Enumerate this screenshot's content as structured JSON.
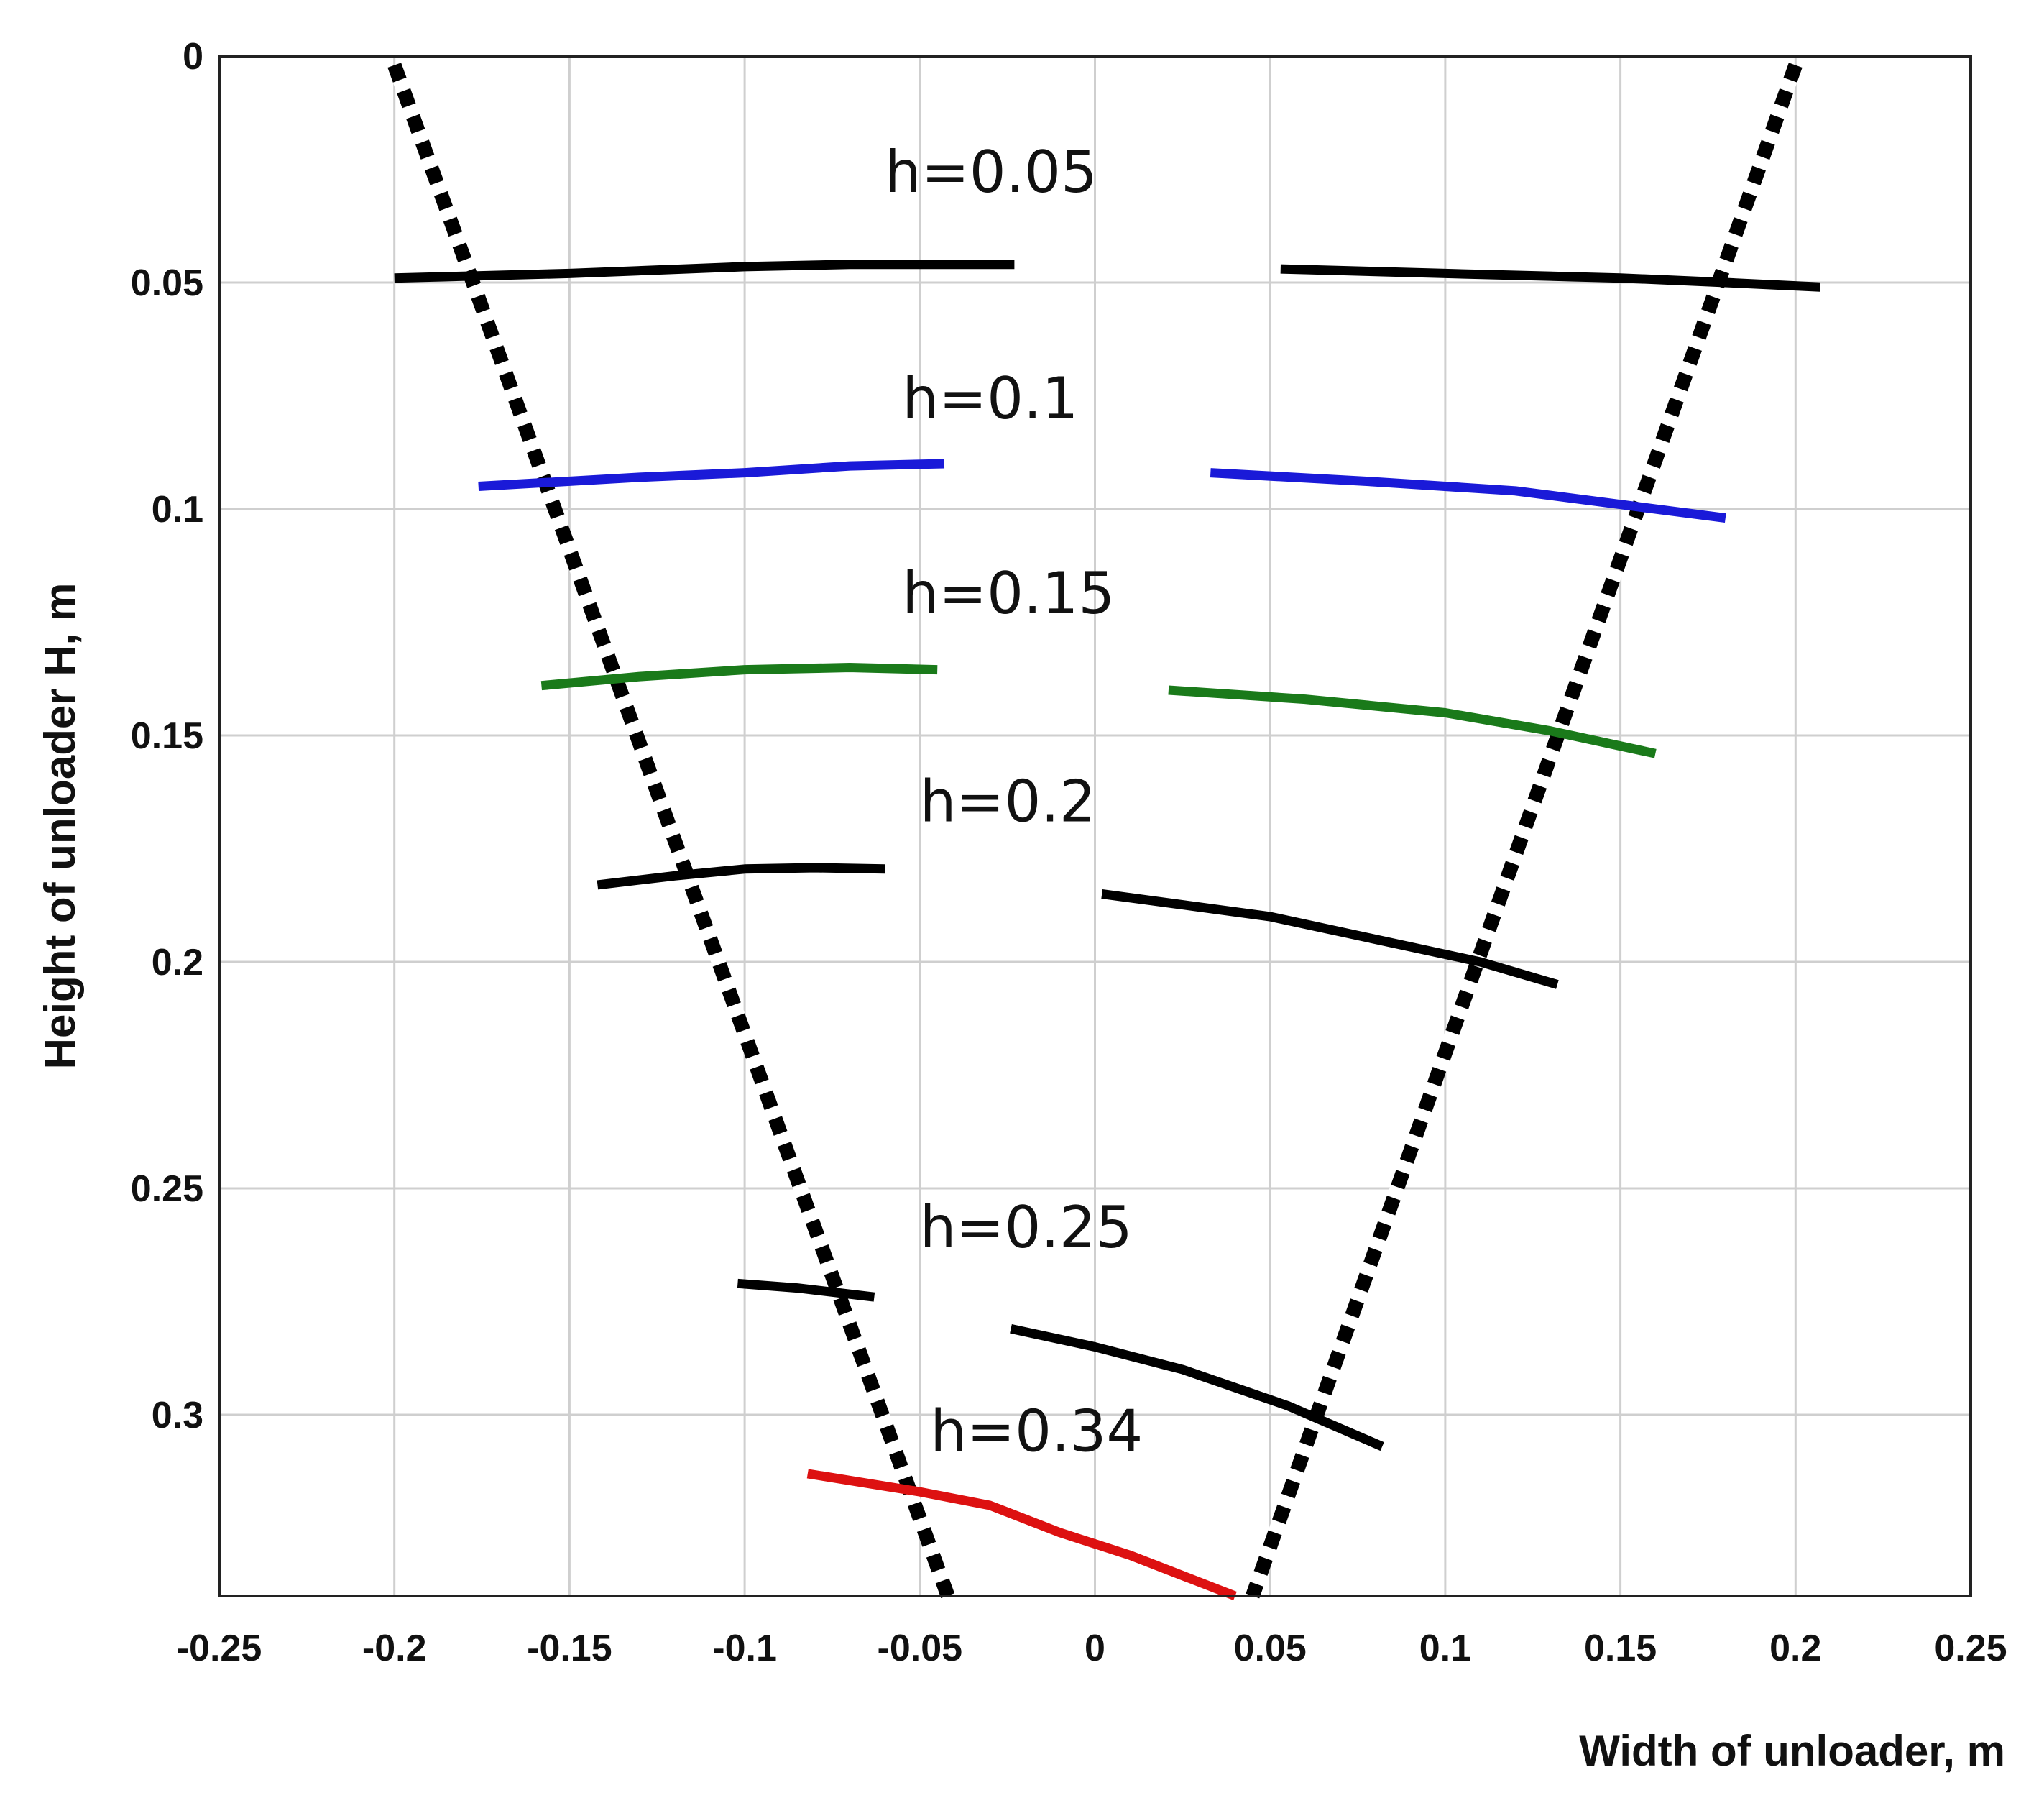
{
  "chart_data": {
    "type": "line",
    "title": "",
    "xlabel": "Width of unloader, m",
    "ylabel": "Height of unloader H, m",
    "xlim": [
      -0.25,
      0.25
    ],
    "ylim": [
      0,
      0.34
    ],
    "y_inverted": true,
    "grid": true,
    "x_ticks": [
      -0.25,
      -0.2,
      -0.15,
      -0.1,
      -0.05,
      0,
      0.05,
      0.1,
      0.15,
      0.2,
      0.25
    ],
    "x_tick_labels": [
      "-0.25",
      "-0.2",
      "-0.15",
      "-0.1",
      "-0.05",
      "0",
      "0.05",
      "0.1",
      "0.15",
      "0.2",
      "0.25"
    ],
    "y_ticks": [
      0,
      0.05,
      0.1,
      0.15,
      0.2,
      0.25,
      0.3
    ],
    "y_tick_labels": [
      "0",
      "0.05",
      "0.1",
      "0.15",
      "0.2",
      "0.25",
      "0.3"
    ],
    "boundary_lines": [
      {
        "name": "left-boundary",
        "style": "dashed",
        "color": "#000000",
        "points": [
          [
            -0.2,
            0.002
          ],
          [
            -0.042,
            0.34
          ]
        ]
      },
      {
        "name": "right-boundary",
        "style": "dashed",
        "color": "#000000",
        "points": [
          [
            0.2,
            0.002
          ],
          [
            0.045,
            0.34
          ]
        ]
      }
    ],
    "series": [
      {
        "name": "h=0.05",
        "color": "#000000",
        "label": "h=0.05",
        "label_at": [
          -0.06,
          0.03
        ],
        "segments": [
          [
            [
              -0.2,
              0.049
            ],
            [
              -0.15,
              0.048
            ],
            [
              -0.1,
              0.0465
            ],
            [
              -0.07,
              0.046
            ],
            [
              -0.023,
              0.046
            ]
          ],
          [
            [
              0.053,
              0.047
            ],
            [
              0.1,
              0.048
            ],
            [
              0.15,
              0.049
            ],
            [
              0.18,
              0.05
            ],
            [
              0.207,
              0.051
            ]
          ]
        ]
      },
      {
        "name": "h=0.1",
        "color": "#1a1ad8",
        "label": "h=0.1",
        "label_at": [
          -0.055,
          0.08
        ],
        "segments": [
          [
            [
              -0.176,
              0.095
            ],
            [
              -0.13,
              0.093
            ],
            [
              -0.1,
              0.092
            ],
            [
              -0.07,
              0.0905
            ],
            [
              -0.043,
              0.09
            ]
          ],
          [
            [
              0.033,
              0.092
            ],
            [
              0.08,
              0.094
            ],
            [
              0.12,
              0.096
            ],
            [
              0.15,
              0.099
            ],
            [
              0.18,
              0.102
            ]
          ]
        ]
      },
      {
        "name": "h=0.15",
        "color": "#1a7a1a",
        "label": "h=0.15",
        "label_at": [
          -0.055,
          0.123
        ],
        "segments": [
          [
            [
              -0.158,
              0.139
            ],
            [
              -0.13,
              0.137
            ],
            [
              -0.1,
              0.1355
            ],
            [
              -0.07,
              0.135
            ],
            [
              -0.045,
              0.1355
            ]
          ],
          [
            [
              0.021,
              0.14
            ],
            [
              0.06,
              0.142
            ],
            [
              0.1,
              0.145
            ],
            [
              0.13,
              0.149
            ],
            [
              0.16,
              0.154
            ]
          ]
        ]
      },
      {
        "name": "h=0.2",
        "color": "#000000",
        "label": "h=0.2",
        "label_at": [
          -0.05,
          0.169
        ],
        "segments": [
          [
            [
              -0.142,
              0.183
            ],
            [
              -0.12,
              0.181
            ],
            [
              -0.1,
              0.1795
            ],
            [
              -0.08,
              0.1792
            ],
            [
              -0.06,
              0.1795
            ]
          ],
          [
            [
              0.002,
              0.185
            ],
            [
              0.05,
              0.19
            ],
            [
              0.08,
              0.195
            ],
            [
              0.11,
              0.2
            ],
            [
              0.132,
              0.205
            ]
          ]
        ]
      },
      {
        "name": "h=0.25",
        "color": "#000000",
        "label": "h=0.25",
        "label_at": [
          -0.05,
          0.263
        ],
        "segments": [
          [
            [
              -0.102,
              0.271
            ],
            [
              -0.085,
              0.272
            ],
            [
              -0.063,
              0.274
            ]
          ],
          [
            [
              -0.024,
              0.281
            ],
            [
              0.0,
              0.285
            ],
            [
              0.025,
              0.29
            ],
            [
              0.055,
              0.298
            ],
            [
              0.082,
              0.307
            ]
          ]
        ]
      },
      {
        "name": "h=0.34",
        "color": "#dd1111",
        "label": "h=0.34",
        "label_at": [
          -0.047,
          0.308
        ],
        "segments": [
          [
            [
              -0.082,
              0.313
            ],
            [
              -0.05,
              0.317
            ],
            [
              -0.03,
              0.32
            ],
            [
              -0.01,
              0.326
            ],
            [
              0.01,
              0.331
            ],
            [
              0.04,
              0.34
            ]
          ]
        ]
      }
    ]
  }
}
